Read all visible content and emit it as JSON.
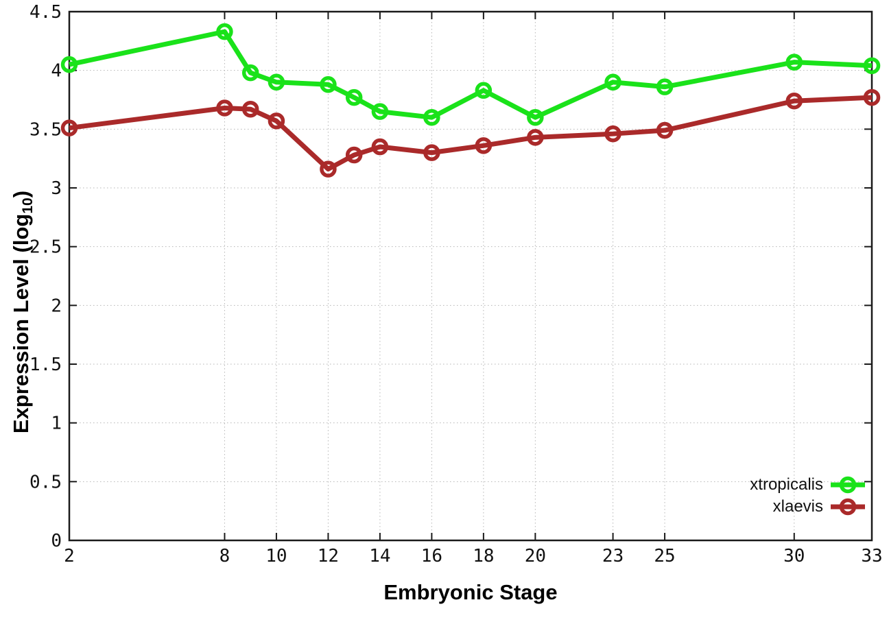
{
  "figure": {
    "background": "#ffffff",
    "xlabel": "Embryonic Stage",
    "ylabel": "Expression Level (log10)",
    "ylabel_parts": {
      "main": "Expression Level (log",
      "sub": "10",
      "suffix": ")"
    }
  },
  "chart_data": {
    "type": "line",
    "title": "",
    "xlabel": "Embryonic Stage",
    "ylabel": "Expression Level (log10)",
    "x": [
      2,
      8,
      9,
      10,
      12,
      13,
      14,
      16,
      18,
      20,
      23,
      25,
      30,
      33
    ],
    "series": [
      {
        "name": "xtropicalis",
        "color": "#1ae21a",
        "values": [
          4.05,
          4.33,
          3.98,
          3.9,
          3.88,
          3.77,
          3.65,
          3.6,
          3.83,
          3.6,
          3.9,
          3.86,
          4.07,
          4.04
        ]
      },
      {
        "name": "xlaevis",
        "color": "#aa2a2a",
        "values": [
          3.51,
          3.68,
          3.67,
          3.57,
          3.16,
          3.28,
          3.35,
          3.3,
          3.36,
          3.43,
          3.46,
          3.49,
          3.74,
          3.77
        ]
      }
    ],
    "x_ticks": [
      2,
      8,
      10,
      12,
      14,
      16,
      18,
      20,
      23,
      25,
      30,
      33
    ],
    "x_tick_labels": [
      "2",
      "8",
      "10",
      "12",
      "14",
      "16",
      "18",
      "20",
      "23",
      "25",
      "30",
      "33"
    ],
    "y_ticks": [
      0,
      0.5,
      1,
      1.5,
      2,
      2.5,
      3,
      3.5,
      4,
      4.5
    ],
    "y_tick_labels": [
      "0",
      "0.5",
      "1",
      "1.5",
      "2",
      "2.5",
      "3",
      "3.5",
      "4",
      "4.5"
    ],
    "xlim": [
      2,
      33
    ],
    "ylim": [
      0,
      4.5
    ],
    "grid": true,
    "grid_color": "#b5b5b5",
    "border_color": "#1a1a1a",
    "marker": "open-circle",
    "legend_position": "bottom-right"
  }
}
